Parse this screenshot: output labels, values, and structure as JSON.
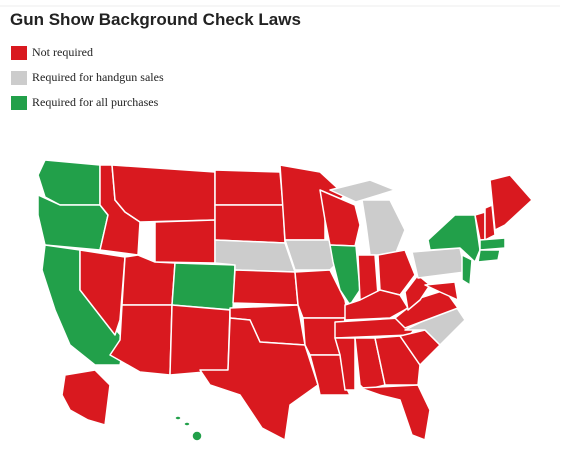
{
  "title": "Gun Show Background Check Laws",
  "legend": [
    {
      "label": "Not required",
      "color": "#d9191f"
    },
    {
      "label": "Required for handgun sales",
      "color": "#cccccc"
    },
    {
      "label": "Required for all purchases",
      "color": "#22a04a"
    }
  ]
}
